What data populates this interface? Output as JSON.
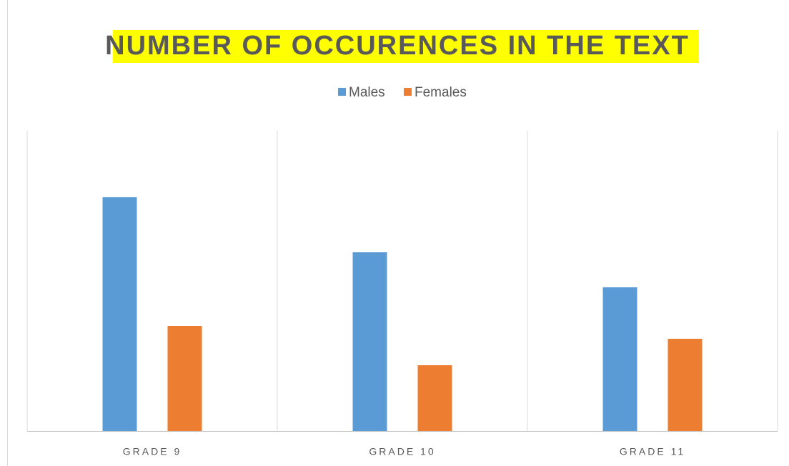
{
  "chart_data": {
    "type": "bar",
    "title": "NUMBER OF OCCURENCES IN THE TEXT",
    "categories": [
      "GRADE 9",
      "GRADE 10",
      "GRADE 11"
    ],
    "series": [
      {
        "name": "Males",
        "color": "#5b9bd5",
        "values": [
          327,
          250,
          201
        ]
      },
      {
        "name": "Females",
        "color": "#ed7d31",
        "values": [
          147,
          92,
          129
        ]
      }
    ],
    "ylim": [
      0,
      420
    ],
    "legend": "top"
  }
}
